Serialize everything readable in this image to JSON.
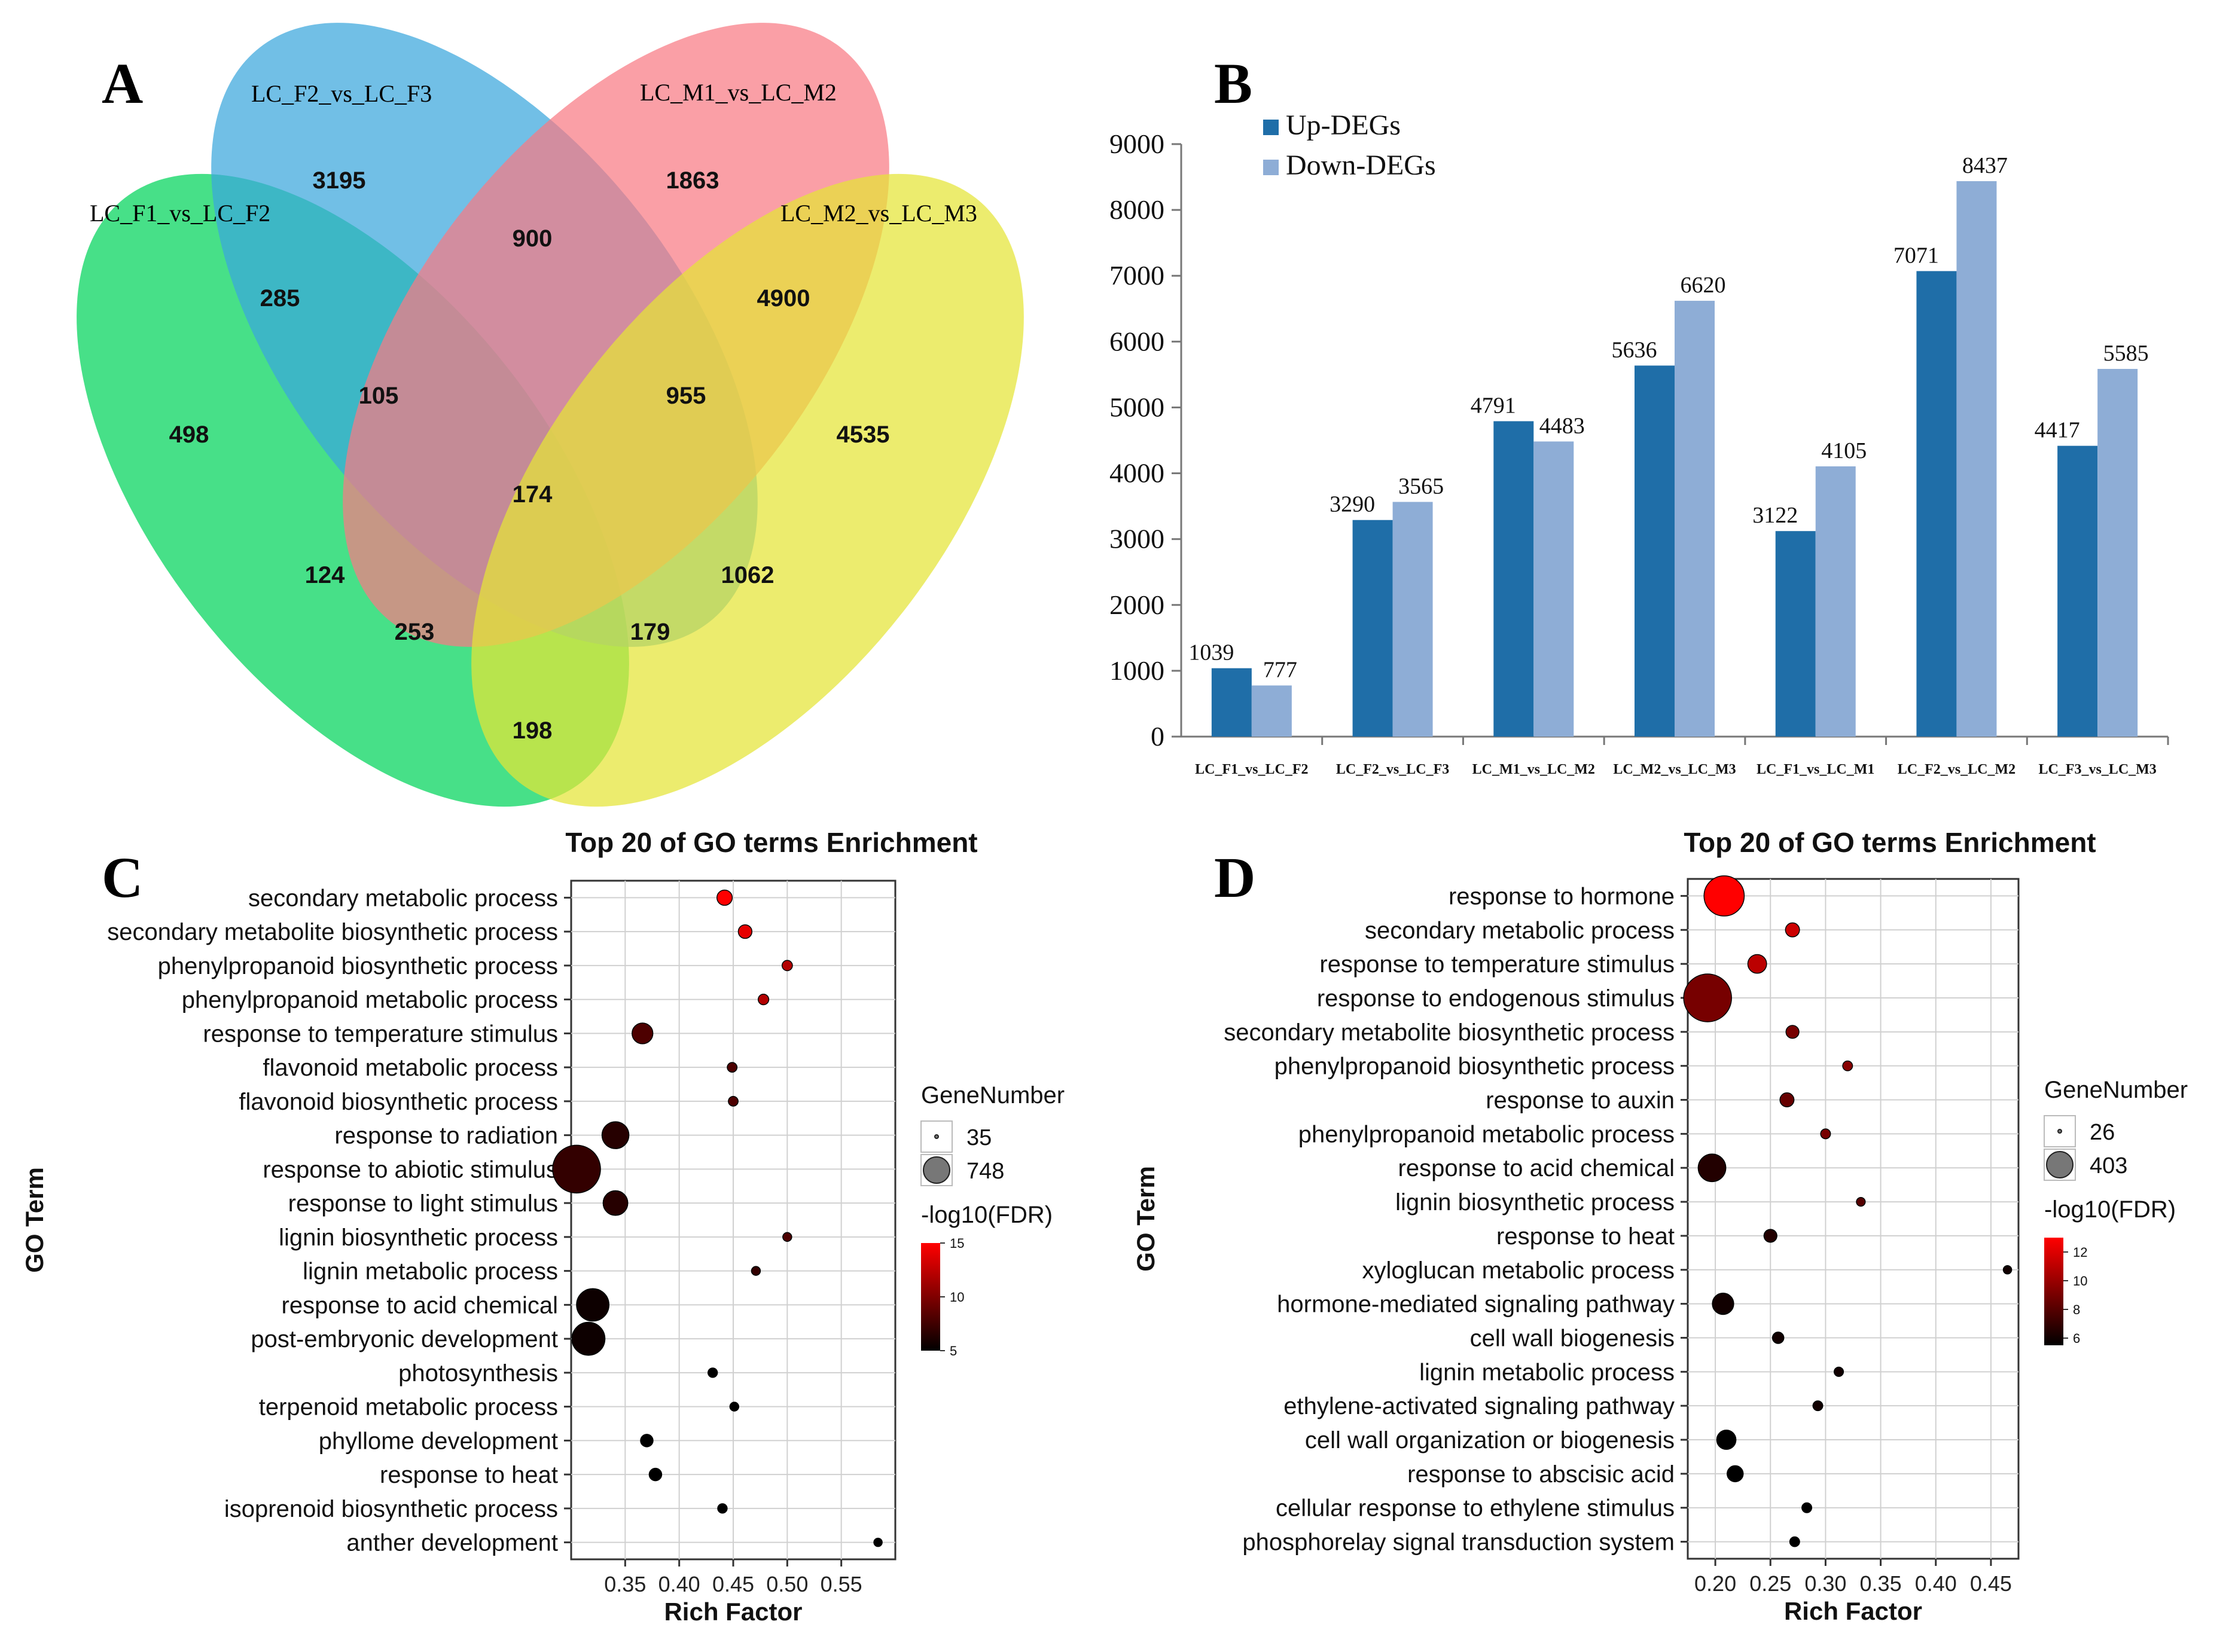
{
  "panels": {
    "a": "A",
    "b": "B",
    "c": "C",
    "d": "D"
  },
  "chart_data": [
    {
      "type": "venn",
      "sets": [
        "LC_F1_vs_LC_F2",
        "LC_F2_vs_LC_F3",
        "LC_M1_vs_LC_M2",
        "LC_M2_vs_LC_M3"
      ],
      "regions": [
        {
          "sets": [
            "LC_F1_vs_LC_F2"
          ],
          "value": 498
        },
        {
          "sets": [
            "LC_F2_vs_LC_F3"
          ],
          "value": 3195
        },
        {
          "sets": [
            "LC_M1_vs_LC_M2"
          ],
          "value": 1863
        },
        {
          "sets": [
            "LC_M2_vs_LC_M3"
          ],
          "value": 4535
        },
        {
          "sets": [
            "LC_F1_vs_LC_F2",
            "LC_F2_vs_LC_F3"
          ],
          "value": 285
        },
        {
          "sets": [
            "LC_F2_vs_LC_F3",
            "LC_M1_vs_LC_M2"
          ],
          "value": 900
        },
        {
          "sets": [
            "LC_M1_vs_LC_M2",
            "LC_M2_vs_LC_M3"
          ],
          "value": 4900
        },
        {
          "sets": [
            "LC_F1_vs_LC_F2",
            "LC_F2_vs_LC_F3",
            "LC_M1_vs_LC_M2"
          ],
          "value": 105
        },
        {
          "sets": [
            "LC_F2_vs_LC_F3",
            "LC_M1_vs_LC_M2",
            "LC_M2_vs_LC_M3"
          ],
          "value": 955
        },
        {
          "sets": [
            "LC_F1_vs_LC_F2",
            "LC_F2_vs_LC_F3",
            "LC_M1_vs_LC_M2",
            "LC_M2_vs_LC_M3"
          ],
          "value": 174
        },
        {
          "sets": [
            "LC_F1_vs_LC_F2",
            "LC_M1_vs_LC_M2"
          ],
          "value": 124
        },
        {
          "sets": [
            "LC_F2_vs_LC_F3",
            "LC_M2_vs_LC_M3"
          ],
          "value": 1062
        },
        {
          "sets": [
            "LC_F1_vs_LC_F2",
            "LC_M1_vs_LC_M2",
            "LC_M2_vs_LC_M3"
          ],
          "value": 253
        },
        {
          "sets": [
            "LC_F1_vs_LC_F2",
            "LC_F2_vs_LC_F3",
            "LC_M2_vs_LC_M3"
          ],
          "value": 179
        },
        {
          "sets": [
            "LC_F1_vs_LC_F2",
            "LC_M2_vs_LC_M3"
          ],
          "value": 198
        }
      ],
      "colors": [
        "#00d45a",
        "#3aa6dc",
        "#f87a84",
        "#e4e436"
      ]
    },
    {
      "type": "bar",
      "categories": [
        "LC_F1_vs_LC_F2",
        "LC_F2_vs_LC_F3",
        "LC_M1_vs_LC_M2",
        "LC_M2_vs_LC_M3",
        "LC_F1_vs_LC_M1",
        "LC_F2_vs_LC_M2",
        "LC_F3_vs_LC_M3"
      ],
      "series": [
        {
          "name": "Up-DEGs",
          "values": [
            1039,
            3290,
            4791,
            5636,
            3122,
            7071,
            4417
          ],
          "color": "#1f6ea8"
        },
        {
          "name": "Down-DEGs",
          "values": [
            777,
            3565,
            4483,
            6620,
            4105,
            8437,
            5585
          ],
          "color": "#8eadd6"
        }
      ],
      "ylim": [
        0,
        9000
      ],
      "yticks": [
        0,
        1000,
        2000,
        3000,
        4000,
        5000,
        6000,
        7000,
        8000,
        9000
      ],
      "legend": "top-left"
    },
    {
      "type": "scatter",
      "title": "Top 20 of GO terms Enrichment",
      "xlabel": "Rich Factor",
      "ylabel": "GO Term",
      "xlim": [
        0.3,
        0.6
      ],
      "xticks": [
        0.35,
        0.4,
        0.45,
        0.5,
        0.55
      ],
      "xtick_labels": [
        "0.35",
        "0.40",
        "0.45",
        "0.50",
        "0.55"
      ],
      "size_legend": {
        "title": "GeneNumber",
        "min": 35,
        "max": 748
      },
      "color_legend": {
        "title": "-log10(FDR)",
        "min": 5,
        "max": 15,
        "ticks": [
          15,
          10,
          5
        ]
      },
      "points": [
        {
          "term": "secondary metabolic process",
          "x": 0.442,
          "size": 160,
          "color": 15
        },
        {
          "term": "secondary metabolite biosynthetic process",
          "x": 0.461,
          "size": 130,
          "color": 14
        },
        {
          "term": "phenylpropanoid biosynthetic process",
          "x": 0.5,
          "size": 70,
          "color": 12
        },
        {
          "term": "phenylpropanoid metabolic process",
          "x": 0.478,
          "size": 75,
          "color": 12
        },
        {
          "term": "response to temperature stimulus",
          "x": 0.366,
          "size": 260,
          "color": 8
        },
        {
          "term": "flavonoid metabolic process",
          "x": 0.449,
          "size": 60,
          "color": 8
        },
        {
          "term": "flavonoid biosynthetic process",
          "x": 0.45,
          "size": 60,
          "color": 8
        },
        {
          "term": "response to radiation",
          "x": 0.341,
          "size": 370,
          "color": 6.5
        },
        {
          "term": "response to abiotic stimulus",
          "x": 0.305,
          "size": 748,
          "color": 7
        },
        {
          "term": "response to light stimulus",
          "x": 0.341,
          "size": 330,
          "color": 6.5
        },
        {
          "term": "lignin biosynthetic process",
          "x": 0.5,
          "size": 45,
          "color": 8
        },
        {
          "term": "lignin metabolic process",
          "x": 0.471,
          "size": 45,
          "color": 7
        },
        {
          "term": "response to acid chemical",
          "x": 0.32,
          "size": 470,
          "color": 5.5
        },
        {
          "term": "post-embryonic development",
          "x": 0.316,
          "size": 480,
          "color": 5.5
        },
        {
          "term": "photosynthesis",
          "x": 0.431,
          "size": 55,
          "color": 5
        },
        {
          "term": "terpenoid metabolic process",
          "x": 0.451,
          "size": 45,
          "color": 5
        },
        {
          "term": "phyllome development",
          "x": 0.37,
          "size": 110,
          "color": 5
        },
        {
          "term": "response to heat",
          "x": 0.378,
          "size": 110,
          "color": 5
        },
        {
          "term": "isoprenoid biosynthetic process",
          "x": 0.44,
          "size": 55,
          "color": 5
        },
        {
          "term": "anther development",
          "x": 0.584,
          "size": 35,
          "color": 5
        }
      ]
    },
    {
      "type": "scatter",
      "title": "Top 20 of GO terms Enrichment",
      "xlabel": "Rich Factor",
      "ylabel": "GO Term",
      "xlim": [
        0.175,
        0.475
      ],
      "xticks": [
        0.2,
        0.25,
        0.3,
        0.35,
        0.4,
        0.45
      ],
      "xtick_labels": [
        "0.20",
        "0.25",
        "0.30",
        "0.35",
        "0.40",
        "0.45"
      ],
      "size_legend": {
        "title": "GeneNumber",
        "min": 26,
        "max": 403
      },
      "color_legend": {
        "title": "-log10(FDR)",
        "min": 5.5,
        "max": 13,
        "ticks": [
          12,
          10,
          8,
          6
        ]
      },
      "points": [
        {
          "term": "response to hormone",
          "x": 0.208,
          "size": 330,
          "color": 13
        },
        {
          "term": "secondary metabolic process",
          "x": 0.27,
          "size": 80,
          "color": 11.5
        },
        {
          "term": "response to temperature stimulus",
          "x": 0.238,
          "size": 125,
          "color": 11
        },
        {
          "term": "response to endogenous stimulus",
          "x": 0.193,
          "size": 403,
          "color": 9
        },
        {
          "term": "secondary metabolite biosynthetic process",
          "x": 0.27,
          "size": 70,
          "color": 9
        },
        {
          "term": "phenylpropanoid biosynthetic process",
          "x": 0.32,
          "size": 40,
          "color": 9.5
        },
        {
          "term": "response to auxin",
          "x": 0.265,
          "size": 80,
          "color": 8.5
        },
        {
          "term": "phenylpropanoid metabolic process",
          "x": 0.3,
          "size": 40,
          "color": 9
        },
        {
          "term": "response to acid chemical",
          "x": 0.197,
          "size": 210,
          "color": 6.5
        },
        {
          "term": "lignin biosynthetic process",
          "x": 0.332,
          "size": 30,
          "color": 8
        },
        {
          "term": "response to heat",
          "x": 0.25,
          "size": 70,
          "color": 6.5
        },
        {
          "term": "xyloglucan metabolic process",
          "x": 0.465,
          "size": 26,
          "color": 6
        },
        {
          "term": "hormone-mediated signaling pathway",
          "x": 0.207,
          "size": 150,
          "color": 6
        },
        {
          "term": "cell wall biogenesis",
          "x": 0.257,
          "size": 55,
          "color": 6
        },
        {
          "term": "lignin metabolic process",
          "x": 0.312,
          "size": 35,
          "color": 6
        },
        {
          "term": "ethylene-activated signaling pathway",
          "x": 0.293,
          "size": 40,
          "color": 6
        },
        {
          "term": "cell wall organization or biogenesis",
          "x": 0.21,
          "size": 130,
          "color": 5.5
        },
        {
          "term": "response to abscisic acid",
          "x": 0.218,
          "size": 100,
          "color": 5.5
        },
        {
          "term": "cellular response to ethylene stimulus",
          "x": 0.283,
          "size": 40,
          "color": 5.5
        },
        {
          "term": "phosphorelay signal transduction system",
          "x": 0.272,
          "size": 40,
          "color": 5.5
        }
      ]
    }
  ]
}
